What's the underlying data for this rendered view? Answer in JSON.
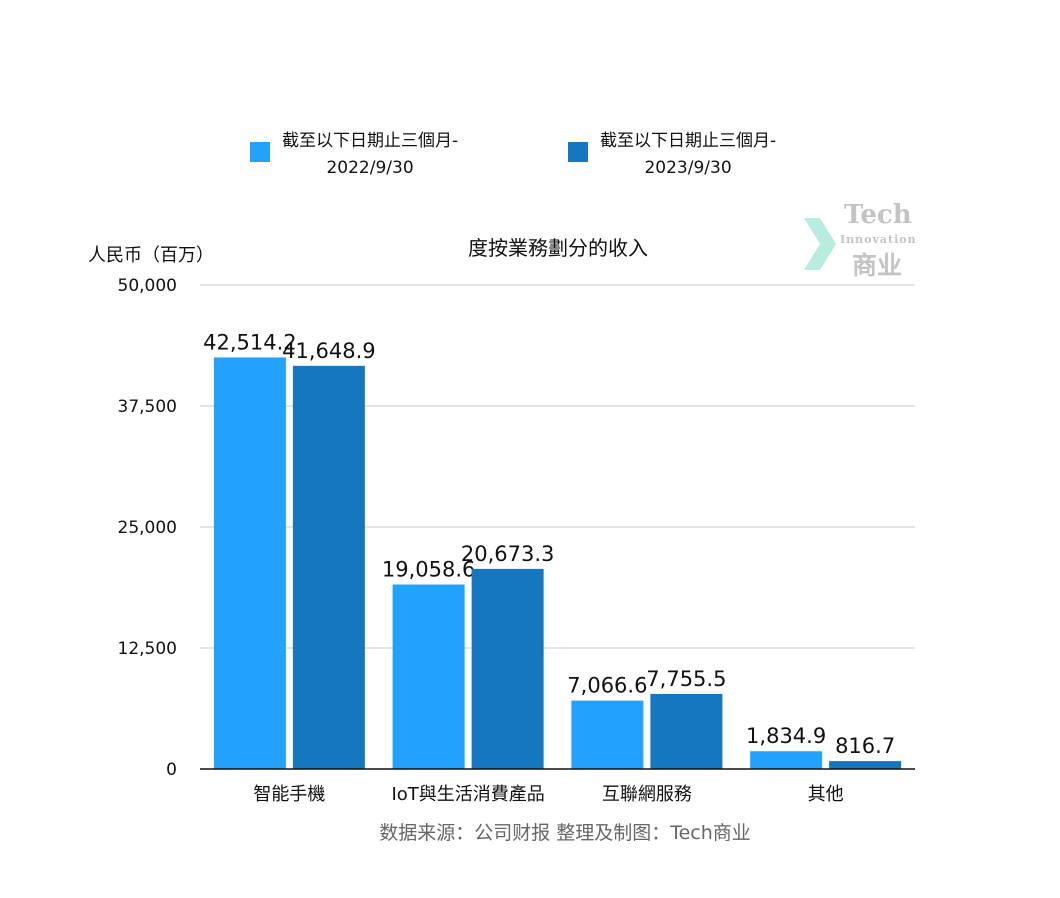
{
  "chart_data": {
    "type": "bar",
    "title": "度按業務劃分的收入",
    "ylabel": "人民币（百万）",
    "xlabel": "",
    "categories": [
      "智能手機",
      "IoT與生活消費產品",
      "互聯網服務",
      "其他"
    ],
    "series": [
      {
        "name_line1": "截至以下日期止三個月-",
        "name_line2": "2022/9/30",
        "color": "#22a2fc",
        "values": [
          42514.2,
          19058.6,
          7066.6,
          1834.9
        ],
        "labels": [
          "42,514.2",
          "19,058.6",
          "7,066.6",
          "1,834.9"
        ]
      },
      {
        "name_line1": "截至以下日期止三個月-",
        "name_line2": "2023/9/30",
        "color": "#1577bf",
        "values": [
          41648.9,
          20673.3,
          7755.5,
          816.7
        ],
        "labels": [
          "41,648.9",
          "20,673.3",
          "7,755.5",
          "816.7"
        ]
      }
    ],
    "ylim": [
      0,
      50000
    ],
    "yticks": [
      0,
      12500,
      25000,
      37500,
      50000
    ],
    "ytick_labels": [
      "0",
      "12,500",
      "25,000",
      "37,500",
      "50,000"
    ],
    "grid": true,
    "legend_position": "top"
  },
  "source_note": "数据来源：公司财报 整理及制图：Tech商业",
  "logo": {
    "line1": "Tech",
    "line2": "Innovation",
    "line3": "商业"
  }
}
